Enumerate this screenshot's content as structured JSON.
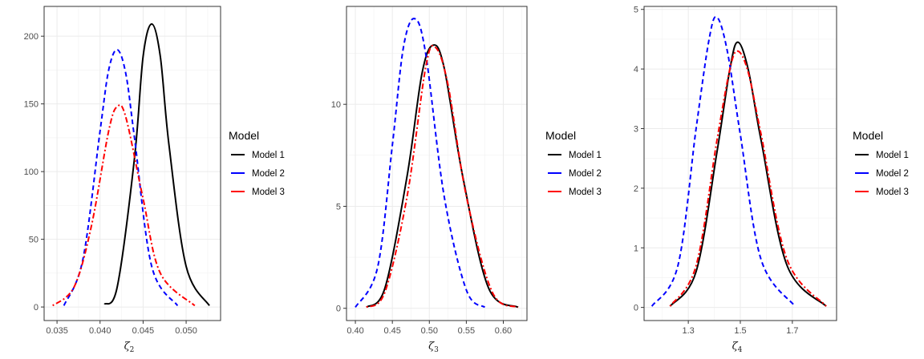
{
  "chart_data": [
    {
      "type": "line",
      "xlabel": "ζ",
      "xlabel_sub": "2",
      "ylabel": "",
      "xlim": [
        0.0335,
        0.054
      ],
      "ylim": [
        -10,
        222
      ],
      "xticks": [
        0.035,
        0.04,
        0.045,
        0.05
      ],
      "xtick_labels": [
        "0.035",
        "0.040",
        "0.045",
        "0.050"
      ],
      "yticks": [
        0,
        50,
        100,
        150,
        200
      ],
      "ytick_labels": [
        "0",
        "50",
        "100",
        "150",
        "200"
      ],
      "grid": true,
      "legend": {
        "title": "Model",
        "position": "right",
        "entries": [
          "Model 1",
          "Model 2",
          "Model 3"
        ]
      },
      "series": [
        {
          "name": "Model 1",
          "color": "#000000",
          "dash": "solid",
          "x": [
            0.0405,
            0.042,
            0.044,
            0.045,
            0.046,
            0.047,
            0.048,
            0.05,
            0.0527
          ],
          "y": [
            2,
            15,
            110,
            185,
            209,
            185,
            120,
            30,
            1
          ]
        },
        {
          "name": "Model 2",
          "color": "#0000ff",
          "dash": "dashed",
          "x": [
            0.0358,
            0.038,
            0.04,
            0.041,
            0.042,
            0.043,
            0.044,
            0.046,
            0.049
          ],
          "y": [
            1,
            35,
            130,
            175,
            190,
            172,
            125,
            30,
            1
          ]
        },
        {
          "name": "Model 3",
          "color": "#ff0000",
          "dash": "dotdash",
          "x": [
            0.0345,
            0.037,
            0.039,
            0.041,
            0.042,
            0.043,
            0.045,
            0.047,
            0.051
          ],
          "y": [
            1,
            15,
            60,
            130,
            148,
            140,
            80,
            25,
            1
          ]
        }
      ]
    },
    {
      "type": "line",
      "xlabel": "ζ",
      "xlabel_sub": "3",
      "ylabel": "",
      "xlim": [
        0.388,
        0.632
      ],
      "ylim": [
        -0.6,
        14.8
      ],
      "xticks": [
        0.4,
        0.45,
        0.5,
        0.55,
        0.6
      ],
      "xtick_labels": [
        "0.40",
        "0.45",
        "0.50",
        "0.55",
        "0.60"
      ],
      "yticks": [
        0,
        5,
        10
      ],
      "ytick_labels": [
        "0",
        "5",
        "10"
      ],
      "grid": true,
      "legend": {
        "title": "Model",
        "position": "right",
        "entries": [
          "Model 1",
          "Model 2",
          "Model 3"
        ]
      },
      "series": [
        {
          "name": "Model 1",
          "color": "#000000",
          "dash": "solid",
          "x": [
            0.415,
            0.44,
            0.47,
            0.49,
            0.505,
            0.52,
            0.545,
            0.58,
            0.62
          ],
          "y": [
            0.05,
            1.0,
            6.5,
            11.5,
            12.9,
            11.8,
            6.5,
            1.0,
            0.05
          ]
        },
        {
          "name": "Model 2",
          "color": "#0000ff",
          "dash": "dashed",
          "x": [
            0.4,
            0.43,
            0.45,
            0.465,
            0.48,
            0.495,
            0.52,
            0.55,
            0.575
          ],
          "y": [
            0.05,
            2.0,
            8.0,
            12.8,
            14.2,
            12.5,
            5.5,
            0.9,
            0.05
          ]
        },
        {
          "name": "Model 3",
          "color": "#ff0000",
          "dash": "dotdash",
          "x": [
            0.415,
            0.44,
            0.47,
            0.495,
            0.508,
            0.525,
            0.55,
            0.585,
            0.62
          ],
          "y": [
            0.05,
            0.8,
            5.5,
            11.8,
            12.8,
            11.0,
            5.5,
            0.8,
            0.05
          ]
        }
      ]
    },
    {
      "type": "line",
      "xlabel": "ζ",
      "xlabel_sub": "4",
      "ylabel": "",
      "xlim": [
        1.13,
        1.87
      ],
      "ylim": [
        -0.22,
        5.05
      ],
      "xticks": [
        1.3,
        1.5,
        1.7
      ],
      "xtick_labels": [
        "1.3",
        "1.5",
        "1.7"
      ],
      "yticks": [
        0,
        1,
        2,
        3,
        4,
        5
      ],
      "ytick_labels": [
        "0",
        "1",
        "2",
        "3",
        "4",
        "5"
      ],
      "grid": true,
      "legend": {
        "title": "Model",
        "position": "right",
        "entries": [
          "Model 1",
          "Model 2",
          "Model 3"
        ]
      },
      "series": [
        {
          "name": "Model 1",
          "color": "#000000",
          "dash": "solid",
          "x": [
            1.23,
            1.33,
            1.41,
            1.46,
            1.49,
            1.53,
            1.58,
            1.68,
            1.83
          ],
          "y": [
            0.02,
            0.6,
            2.6,
            4.0,
            4.45,
            4.0,
            2.8,
            0.7,
            0.02
          ]
        },
        {
          "name": "Model 2",
          "color": "#0000ff",
          "dash": "dashed",
          "x": [
            1.16,
            1.26,
            1.33,
            1.38,
            1.41,
            1.45,
            1.5,
            1.58,
            1.71
          ],
          "y": [
            0.02,
            0.7,
            3.0,
            4.5,
            4.87,
            4.3,
            2.9,
            0.8,
            0.02
          ]
        },
        {
          "name": "Model 3",
          "color": "#ff0000",
          "dash": "dotdash",
          "x": [
            1.23,
            1.33,
            1.41,
            1.46,
            1.49,
            1.53,
            1.58,
            1.68,
            1.83
          ],
          "y": [
            0.02,
            0.7,
            2.8,
            4.0,
            4.3,
            3.95,
            2.9,
            0.8,
            0.02
          ]
        }
      ]
    }
  ]
}
